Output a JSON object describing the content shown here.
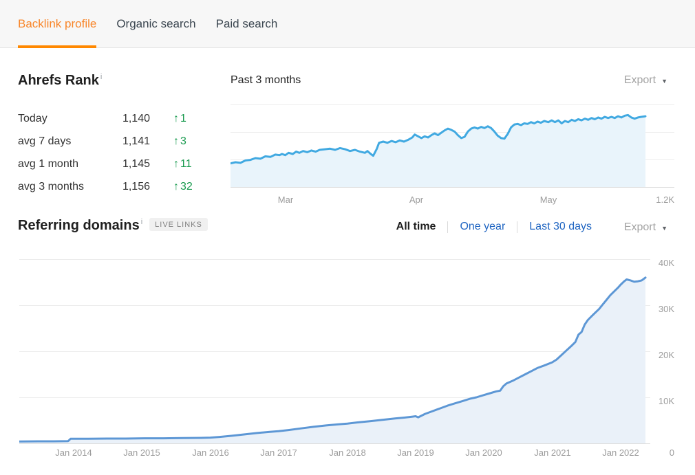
{
  "tabs": {
    "items": [
      {
        "label": "Backlink profile",
        "active": true
      },
      {
        "label": "Organic search",
        "active": false
      },
      {
        "label": "Paid search",
        "active": false
      }
    ]
  },
  "ahrefs_rank": {
    "title": "Ahrefs Rank",
    "info_icon": "i",
    "delta_arrow": "↑",
    "rows": [
      {
        "label": "Today",
        "value": "1,140",
        "delta": "1"
      },
      {
        "label": "avg 7 days",
        "value": "1,141",
        "delta": "3"
      },
      {
        "label": "avg 1 month",
        "value": "1,145",
        "delta": "11"
      },
      {
        "label": "avg 3 months",
        "value": "1,156",
        "delta": "32"
      }
    ]
  },
  "rank_chart_header": {
    "title": "Past 3 months",
    "export_label": "Export",
    "caret": "▼"
  },
  "referring_domains": {
    "title": "Referring domains",
    "info_icon": "i",
    "badge": "LIVE LINKS",
    "filters": [
      {
        "label": "All time",
        "active": true
      },
      {
        "label": "One year",
        "active": false
      },
      {
        "label": "Last 30 days",
        "active": false
      }
    ],
    "export_label": "Export",
    "caret": "▼"
  },
  "colors": {
    "accent_orange": "#ff8800",
    "tab_active_text": "#f8862a",
    "link_blue": "#2166c2",
    "positive_green": "#189a4e",
    "muted_gray": "#9b9b9b",
    "rank_line": "#41a9e1",
    "rank_fill": "#e9f4fb",
    "domains_line": "#5d97d5",
    "domains_fill": "#eaf1f9",
    "gridline": "#ececec",
    "axis_line": "#dcdcdc"
  },
  "chart_data": [
    {
      "name": "ahrefs-rank-past-3-months",
      "type": "area",
      "title": "Past 3 months",
      "x_ticks": [
        {
          "label": "Mar",
          "x": 0.124
        },
        {
          "label": "Apr",
          "x": 0.419
        },
        {
          "label": "May",
          "x": 0.716
        }
      ],
      "y_axis_bottom_label": "1.2K",
      "y_top": 1130,
      "y_bottom": 1200,
      "y_inverted": true,
      "gridline_count": 4,
      "legend": "none",
      "series": [
        {
          "name": "Ahrefs Rank",
          "points": [
            [
              0.0,
              1180
            ],
            [
              0.012,
              1179
            ],
            [
              0.024,
              1179.5
            ],
            [
              0.036,
              1177.5
            ],
            [
              0.048,
              1177
            ],
            [
              0.06,
              1175.5
            ],
            [
              0.072,
              1176
            ],
            [
              0.084,
              1174
            ],
            [
              0.096,
              1174.5
            ],
            [
              0.108,
              1172.5
            ],
            [
              0.118,
              1173
            ],
            [
              0.124,
              1172
            ],
            [
              0.132,
              1173
            ],
            [
              0.14,
              1171
            ],
            [
              0.15,
              1172
            ],
            [
              0.158,
              1170
            ],
            [
              0.166,
              1171
            ],
            [
              0.175,
              1169.5
            ],
            [
              0.185,
              1170.5
            ],
            [
              0.195,
              1169
            ],
            [
              0.205,
              1170
            ],
            [
              0.215,
              1168.5
            ],
            [
              0.228,
              1168
            ],
            [
              0.24,
              1167.5
            ],
            [
              0.252,
              1168.5
            ],
            [
              0.264,
              1167
            ],
            [
              0.276,
              1168
            ],
            [
              0.288,
              1169.5
            ],
            [
              0.3,
              1168.5
            ],
            [
              0.312,
              1170
            ],
            [
              0.324,
              1171
            ],
            [
              0.33,
              1169.5
            ],
            [
              0.338,
              1172
            ],
            [
              0.344,
              1173.5
            ],
            [
              0.352,
              1168
            ],
            [
              0.358,
              1162.5
            ],
            [
              0.368,
              1161.5
            ],
            [
              0.378,
              1162.5
            ],
            [
              0.388,
              1161
            ],
            [
              0.398,
              1162
            ],
            [
              0.408,
              1160.5
            ],
            [
              0.418,
              1161.5
            ],
            [
              0.428,
              1160
            ],
            [
              0.438,
              1158
            ],
            [
              0.444,
              1155.5
            ],
            [
              0.452,
              1157
            ],
            [
              0.46,
              1158.5
            ],
            [
              0.468,
              1157
            ],
            [
              0.476,
              1158
            ],
            [
              0.484,
              1156
            ],
            [
              0.492,
              1154.5
            ],
            [
              0.5,
              1156
            ],
            [
              0.508,
              1154
            ],
            [
              0.516,
              1152
            ],
            [
              0.524,
              1150.5
            ],
            [
              0.532,
              1151.5
            ],
            [
              0.54,
              1153
            ],
            [
              0.548,
              1156
            ],
            [
              0.556,
              1158.5
            ],
            [
              0.564,
              1157.5
            ],
            [
              0.572,
              1153
            ],
            [
              0.58,
              1150.5
            ],
            [
              0.588,
              1149.5
            ],
            [
              0.596,
              1150.5
            ],
            [
              0.604,
              1149
            ],
            [
              0.612,
              1150
            ],
            [
              0.62,
              1148.5
            ],
            [
              0.628,
              1150
            ],
            [
              0.636,
              1153
            ],
            [
              0.644,
              1156.5
            ],
            [
              0.652,
              1158.5
            ],
            [
              0.66,
              1159
            ],
            [
              0.668,
              1155
            ],
            [
              0.676,
              1149.5
            ],
            [
              0.684,
              1147
            ],
            [
              0.692,
              1146.5
            ],
            [
              0.7,
              1147.5
            ],
            [
              0.708,
              1146
            ],
            [
              0.716,
              1146.5
            ],
            [
              0.724,
              1145
            ],
            [
              0.732,
              1146
            ],
            [
              0.74,
              1144.5
            ],
            [
              0.748,
              1145.5
            ],
            [
              0.756,
              1144
            ],
            [
              0.766,
              1145
            ],
            [
              0.774,
              1143.5
            ],
            [
              0.782,
              1145
            ],
            [
              0.79,
              1143.5
            ],
            [
              0.798,
              1146
            ],
            [
              0.806,
              1144
            ],
            [
              0.814,
              1145
            ],
            [
              0.822,
              1143
            ],
            [
              0.83,
              1144
            ],
            [
              0.838,
              1142.5
            ],
            [
              0.846,
              1143.5
            ],
            [
              0.854,
              1142
            ],
            [
              0.862,
              1143
            ],
            [
              0.87,
              1141.5
            ],
            [
              0.878,
              1142.5
            ],
            [
              0.886,
              1141
            ],
            [
              0.894,
              1142
            ],
            [
              0.902,
              1140.5
            ],
            [
              0.91,
              1141.5
            ],
            [
              0.918,
              1140.5
            ],
            [
              0.926,
              1141.5
            ],
            [
              0.934,
              1140
            ],
            [
              0.942,
              1141
            ],
            [
              0.95,
              1139.5
            ],
            [
              0.958,
              1139
            ],
            [
              0.966,
              1141
            ],
            [
              0.974,
              1142
            ],
            [
              0.982,
              1141
            ],
            [
              0.99,
              1140.5
            ],
            [
              1.0,
              1140
            ]
          ]
        }
      ]
    },
    {
      "name": "referring-domains-all-time",
      "type": "area",
      "title": "Referring domains",
      "x_ticks": [
        {
          "label": "Jan 2014",
          "x": 0.083
        },
        {
          "label": "Jan 2015",
          "x": 0.187
        },
        {
          "label": "Jan 2016",
          "x": 0.292
        },
        {
          "label": "Jan 2017",
          "x": 0.396
        },
        {
          "label": "Jan 2018",
          "x": 0.501
        },
        {
          "label": "Jan 2019",
          "x": 0.605
        },
        {
          "label": "Jan 2020",
          "x": 0.709
        },
        {
          "label": "Jan 2021",
          "x": 0.814
        },
        {
          "label": "Jan 2022",
          "x": 0.918
        }
      ],
      "x_end_label": "0",
      "y_ticks": [
        {
          "label": "40K",
          "v": 40
        },
        {
          "label": "30K",
          "v": 30
        },
        {
          "label": "20K",
          "v": 20
        },
        {
          "label": "10K",
          "v": 10
        }
      ],
      "ylim_thousands": [
        0,
        40
      ],
      "y_top": 41.05,
      "y_bottom": 0,
      "legend": "none",
      "series": [
        {
          "name": "Referring domains",
          "unit": "thousands",
          "points": [
            [
              0.0,
              0.4
            ],
            [
              0.03,
              0.45
            ],
            [
              0.055,
              0.45
            ],
            [
              0.078,
              0.5
            ],
            [
              0.082,
              1.0
            ],
            [
              0.11,
              1.0
            ],
            [
              0.14,
              1.05
            ],
            [
              0.17,
              1.05
            ],
            [
              0.2,
              1.1
            ],
            [
              0.23,
              1.1
            ],
            [
              0.26,
              1.15
            ],
            [
              0.29,
              1.2
            ],
            [
              0.305,
              1.25
            ],
            [
              0.32,
              1.4
            ],
            [
              0.34,
              1.65
            ],
            [
              0.36,
              1.95
            ],
            [
              0.38,
              2.25
            ],
            [
              0.4,
              2.5
            ],
            [
              0.414,
              2.65
            ],
            [
              0.43,
              2.9
            ],
            [
              0.45,
              3.25
            ],
            [
              0.47,
              3.6
            ],
            [
              0.49,
              3.9
            ],
            [
              0.51,
              4.15
            ],
            [
              0.524,
              4.3
            ],
            [
              0.54,
              4.55
            ],
            [
              0.56,
              4.8
            ],
            [
              0.58,
              5.1
            ],
            [
              0.6,
              5.4
            ],
            [
              0.615,
              5.6
            ],
            [
              0.628,
              5.8
            ],
            [
              0.633,
              5.9
            ],
            [
              0.637,
              5.65
            ],
            [
              0.648,
              6.4
            ],
            [
              0.66,
              7.0
            ],
            [
              0.672,
              7.6
            ],
            [
              0.684,
              8.2
            ],
            [
              0.696,
              8.7
            ],
            [
              0.708,
              9.2
            ],
            [
              0.72,
              9.7
            ],
            [
              0.73,
              10.0
            ],
            [
              0.742,
              10.5
            ],
            [
              0.752,
              10.9
            ],
            [
              0.762,
              11.3
            ],
            [
              0.768,
              11.45
            ],
            [
              0.773,
              12.4
            ],
            [
              0.778,
              13.0
            ],
            [
              0.788,
              13.6
            ],
            [
              0.798,
              14.3
            ],
            [
              0.808,
              15.0
            ],
            [
              0.818,
              15.7
            ],
            [
              0.828,
              16.4
            ],
            [
              0.838,
              16.9
            ],
            [
              0.851,
              17.6
            ],
            [
              0.858,
              18.2
            ],
            [
              0.866,
              19.2
            ],
            [
              0.874,
              20.2
            ],
            [
              0.882,
              21.2
            ],
            [
              0.888,
              22.0
            ],
            [
              0.893,
              23.6
            ],
            [
              0.898,
              24.2
            ],
            [
              0.903,
              25.8
            ],
            [
              0.908,
              26.8
            ],
            [
              0.914,
              27.6
            ],
            [
              0.92,
              28.4
            ],
            [
              0.926,
              29.2
            ],
            [
              0.932,
              30.2
            ],
            [
              0.938,
              31.2
            ],
            [
              0.944,
              32.2
            ],
            [
              0.95,
              33.0
            ],
            [
              0.956,
              33.8
            ],
            [
              0.96,
              34.4
            ],
            [
              0.966,
              35.2
            ],
            [
              0.97,
              35.6
            ],
            [
              0.976,
              35.4
            ],
            [
              0.982,
              35.1
            ],
            [
              0.988,
              35.2
            ],
            [
              0.994,
              35.4
            ],
            [
              1.0,
              36.0
            ]
          ]
        }
      ]
    }
  ]
}
